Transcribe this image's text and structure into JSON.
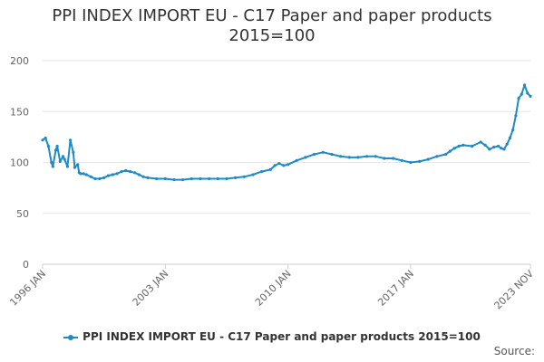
{
  "title_line1": "PPI INDEX IMPORT EU - C17 Paper and paper products",
  "title_line2": "2015=100",
  "source_label": "Source:",
  "colors": {
    "series": "#1f8ac4",
    "grid": "#e6e6e6",
    "axis_text": "#666666"
  },
  "chart_data": {
    "type": "line",
    "title": "PPI INDEX IMPORT EU - C17 Paper and paper products 2015=100",
    "xlabel": "",
    "ylabel": "",
    "ylim": [
      0,
      200
    ],
    "yticks": [
      0,
      50,
      100,
      150,
      200
    ],
    "xlim": [
      "1996-01",
      "2023-11"
    ],
    "xtick_labels": [
      "1996 JAN",
      "2003 JAN",
      "2010 JAN",
      "2017 JAN",
      "2023 NOV"
    ],
    "xtick_dates": [
      "1996-01",
      "2003-01",
      "2010-01",
      "2017-01",
      "2023-11"
    ],
    "grid": true,
    "legend_position": "bottom",
    "series": [
      {
        "name": "PPI INDEX IMPORT EU - C17 Paper and paper products 2015=100",
        "x": [
          "1996-01",
          "1996-03",
          "1996-05",
          "1996-07",
          "1996-08",
          "1996-10",
          "1996-11",
          "1997-01",
          "1997-03",
          "1997-04",
          "1997-06",
          "1997-08",
          "1997-10",
          "1997-11",
          "1998-01",
          "1998-02",
          "1998-03",
          "1998-05",
          "1998-07",
          "1998-10",
          "1999-01",
          "1999-04",
          "1999-07",
          "1999-10",
          "2000-01",
          "2000-04",
          "2000-07",
          "2000-10",
          "2001-01",
          "2001-04",
          "2001-07",
          "2001-10",
          "2002-01",
          "2002-07",
          "2003-01",
          "2003-07",
          "2004-01",
          "2004-07",
          "2005-01",
          "2005-07",
          "2006-01",
          "2006-07",
          "2007-01",
          "2007-07",
          "2008-01",
          "2008-07",
          "2009-01",
          "2009-04",
          "2009-07",
          "2009-10",
          "2010-01",
          "2010-07",
          "2011-01",
          "2011-07",
          "2012-01",
          "2012-07",
          "2013-01",
          "2013-07",
          "2014-01",
          "2014-07",
          "2015-01",
          "2015-07",
          "2016-01",
          "2016-07",
          "2017-01",
          "2017-07",
          "2018-01",
          "2018-07",
          "2019-01",
          "2019-04",
          "2019-07",
          "2019-10",
          "2020-01",
          "2020-07",
          "2021-01",
          "2021-04",
          "2021-07",
          "2021-10",
          "2022-01",
          "2022-03",
          "2022-05",
          "2022-07",
          "2022-09",
          "2022-11",
          "2023-01",
          "2023-03",
          "2023-05",
          "2023-07",
          "2023-09",
          "2023-11"
        ],
        "values": [
          122,
          124,
          116,
          100,
          96,
          112,
          116,
          101,
          106,
          103,
          96,
          122,
          110,
          95,
          98,
          90,
          89,
          89,
          88,
          86,
          84,
          84,
          85,
          87,
          88,
          89,
          91,
          92,
          91,
          90,
          88,
          86,
          85,
          84,
          84,
          83,
          83,
          84,
          84,
          84,
          84,
          84,
          85,
          86,
          88,
          91,
          93,
          97,
          99,
          97,
          98,
          102,
          105,
          108,
          110,
          108,
          106,
          105,
          105,
          106,
          106,
          104,
          104,
          102,
          100,
          101,
          103,
          106,
          108,
          111,
          114,
          116,
          117,
          116,
          120,
          117,
          113,
          115,
          116,
          114,
          113,
          118,
          124,
          132,
          146,
          163,
          167,
          176,
          168,
          165
        ]
      }
    ]
  }
}
